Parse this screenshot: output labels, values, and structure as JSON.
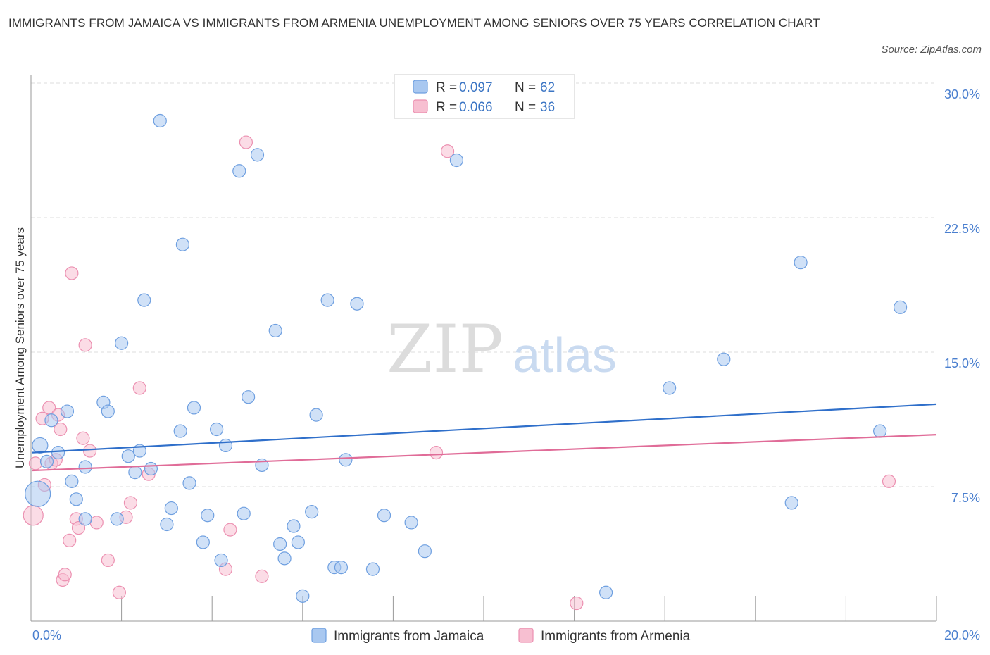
{
  "title": "IMMIGRANTS FROM JAMAICA VS IMMIGRANTS FROM ARMENIA UNEMPLOYMENT AMONG SENIORS OVER 75 YEARS CORRELATION CHART",
  "source": "Source: ZipAtlas.com",
  "watermark": {
    "zip": "ZIP",
    "atlas": "atlas"
  },
  "stats_box": {
    "r_label": "R = ",
    "n_label": "N = ",
    "jamaica": {
      "r": "0.097",
      "n": "62"
    },
    "armenia": {
      "r": "0.066",
      "n": "36"
    }
  },
  "colors": {
    "jamaica_fill": "#a9c8f0",
    "jamaica_stroke": "#6e9fe0",
    "jamaica_line": "#2f6fca",
    "armenia_fill": "#f7bfd1",
    "armenia_stroke": "#ec90b1",
    "armenia_line": "#e06c98",
    "grid": "#dddddd",
    "tick_text": "#4a7fcf"
  },
  "chart_data": {
    "type": "scatter",
    "title": "IMMIGRANTS FROM JAMAICA VS IMMIGRANTS FROM ARMENIA UNEMPLOYMENT AMONG SENIORS OVER 75 YEARS CORRELATION CHART",
    "xlabel": "",
    "ylabel": "Unemployment Among Seniors over 75 years",
    "xlim": [
      0,
      20
    ],
    "ylim": [
      0,
      30
    ],
    "x_tick_labels": [
      {
        "value": 0,
        "label": "0.0%"
      },
      {
        "value": 20,
        "label": "20.0%"
      }
    ],
    "y_tick_labels": [
      {
        "value": 7.5,
        "label": "7.5%"
      },
      {
        "value": 15,
        "label": "15.0%"
      },
      {
        "value": 22.5,
        "label": "22.5%"
      },
      {
        "value": 30,
        "label": "30.0%"
      }
    ],
    "legend": [
      "Immigrants from Jamaica",
      "Immigrants from Armenia"
    ],
    "series": [
      {
        "name": "Immigrants from Jamaica",
        "trend": {
          "x": [
            0,
            20
          ],
          "y": [
            9.4,
            12.1
          ]
        },
        "points": [
          [
            0.2,
            9.8,
            11
          ],
          [
            0.15,
            7.1,
            18
          ],
          [
            0.35,
            8.9,
            9
          ],
          [
            0.45,
            11.2,
            9
          ],
          [
            0.6,
            9.4,
            9
          ],
          [
            0.8,
            11.7,
            9
          ],
          [
            0.9,
            7.8,
            9
          ],
          [
            1.0,
            6.8,
            9
          ],
          [
            1.2,
            8.6,
            9
          ],
          [
            1.2,
            5.7,
            9
          ],
          [
            1.6,
            12.2,
            9
          ],
          [
            1.7,
            11.7,
            9
          ],
          [
            1.9,
            5.7,
            9
          ],
          [
            2.0,
            15.5,
            9
          ],
          [
            2.15,
            9.2,
            9
          ],
          [
            2.3,
            8.3,
            9
          ],
          [
            2.4,
            9.5,
            9
          ],
          [
            2.5,
            17.9,
            9
          ],
          [
            2.65,
            8.5,
            9
          ],
          [
            2.85,
            27.9,
            9
          ],
          [
            3.0,
            5.4,
            9
          ],
          [
            3.1,
            6.3,
            9
          ],
          [
            3.3,
            10.6,
            9
          ],
          [
            3.35,
            21.0,
            9
          ],
          [
            3.5,
            7.7,
            9
          ],
          [
            3.6,
            11.9,
            9
          ],
          [
            3.8,
            4.4,
            9
          ],
          [
            3.9,
            5.9,
            9
          ],
          [
            4.1,
            10.7,
            9
          ],
          [
            4.2,
            3.4,
            9
          ],
          [
            4.3,
            9.8,
            9
          ],
          [
            4.6,
            25.1,
            9
          ],
          [
            4.7,
            6.0,
            9
          ],
          [
            4.8,
            12.5,
            9
          ],
          [
            5.0,
            26.0,
            9
          ],
          [
            5.1,
            8.7,
            9
          ],
          [
            5.4,
            16.2,
            9
          ],
          [
            5.5,
            4.3,
            9
          ],
          [
            5.6,
            3.5,
            9
          ],
          [
            5.8,
            5.3,
            9
          ],
          [
            5.9,
            4.4,
            9
          ],
          [
            6.0,
            1.4,
            9
          ],
          [
            6.2,
            6.1,
            9
          ],
          [
            6.3,
            11.5,
            9
          ],
          [
            6.55,
            17.9,
            9
          ],
          [
            6.7,
            3.0,
            9
          ],
          [
            6.85,
            3.0,
            9
          ],
          [
            6.95,
            9.0,
            9
          ],
          [
            7.2,
            17.7,
            9
          ],
          [
            7.55,
            2.9,
            9
          ],
          [
            7.8,
            5.9,
            9
          ],
          [
            8.4,
            5.5,
            9
          ],
          [
            8.7,
            3.9,
            9
          ],
          [
            9.4,
            25.7,
            9
          ],
          [
            12.7,
            1.6,
            9
          ],
          [
            14.1,
            13.0,
            9
          ],
          [
            15.3,
            14.6,
            9
          ],
          [
            16.8,
            6.6,
            9
          ],
          [
            17.0,
            20.0,
            9
          ],
          [
            18.75,
            10.6,
            9
          ],
          [
            19.2,
            17.5,
            9
          ]
        ]
      },
      {
        "name": "Immigrants from Armenia",
        "trend": {
          "x": [
            0,
            20
          ],
          "y": [
            8.4,
            10.4
          ]
        },
        "points": [
          [
            0.05,
            5.9,
            14
          ],
          [
            0.1,
            8.8,
            9
          ],
          [
            0.25,
            11.3,
            9
          ],
          [
            0.3,
            7.6,
            9
          ],
          [
            0.4,
            11.9,
            9
          ],
          [
            0.45,
            8.8,
            9
          ],
          [
            0.55,
            9.0,
            9
          ],
          [
            0.6,
            11.5,
            9
          ],
          [
            0.65,
            10.7,
            9
          ],
          [
            0.7,
            2.3,
            9
          ],
          [
            0.75,
            2.6,
            9
          ],
          [
            0.85,
            4.5,
            9
          ],
          [
            0.9,
            19.4,
            9
          ],
          [
            1.0,
            5.7,
            9
          ],
          [
            1.05,
            5.2,
            9
          ],
          [
            1.15,
            10.2,
            9
          ],
          [
            1.2,
            15.4,
            9
          ],
          [
            1.3,
            9.5,
            9
          ],
          [
            1.45,
            5.5,
            9
          ],
          [
            1.7,
            3.4,
            9
          ],
          [
            1.95,
            1.6,
            9
          ],
          [
            2.1,
            5.8,
            9
          ],
          [
            2.2,
            6.6,
            9
          ],
          [
            2.4,
            13.0,
            9
          ],
          [
            2.6,
            8.2,
            9
          ],
          [
            4.3,
            2.9,
            9
          ],
          [
            4.4,
            5.1,
            9
          ],
          [
            4.75,
            26.7,
            9
          ],
          [
            5.1,
            2.5,
            9
          ],
          [
            9.2,
            26.2,
            9
          ],
          [
            8.95,
            9.4,
            9
          ],
          [
            12.05,
            1.0,
            9
          ],
          [
            18.95,
            7.8,
            9
          ]
        ]
      }
    ]
  }
}
